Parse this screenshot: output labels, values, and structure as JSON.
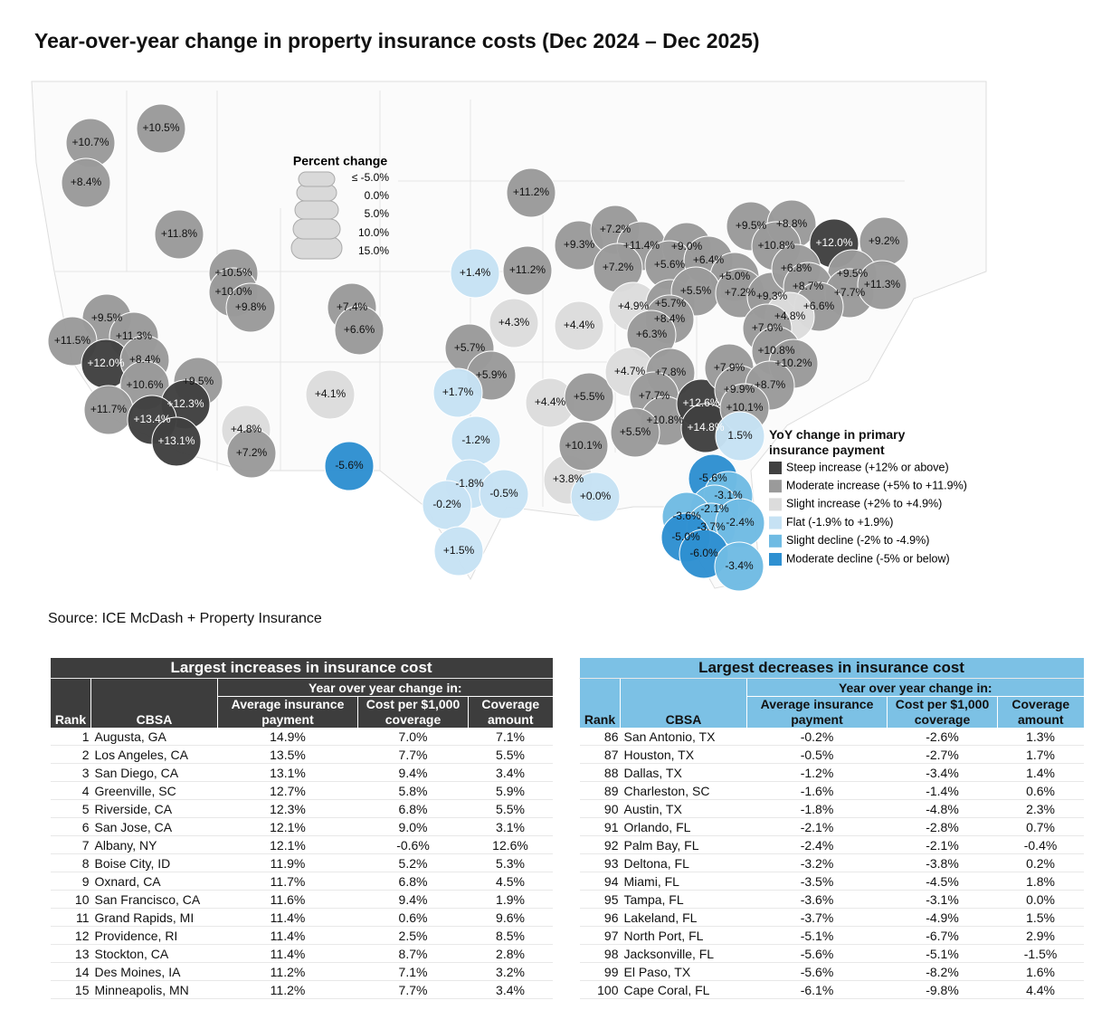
{
  "title": "Year-over-year change in property insurance costs (Dec 2024 – Dec 2025)",
  "map": {
    "size_legend": {
      "title": "Percent change",
      "labels": [
        "≤ -5.0%",
        "0.0%",
        "5.0%",
        "10.0%",
        "15.0%"
      ]
    },
    "legend": {
      "title": "YoY change in primary insurance payment",
      "items": [
        {
          "label": "Steep increase (+12% or above)",
          "color": "#404040"
        },
        {
          "label": "Moderate increase (+5% to +11.9%)",
          "color": "#9a9a9a"
        },
        {
          "label": "Slight increase (+2% to +4.9%)",
          "color": "#dcdcdc"
        },
        {
          "label": "Flat (-1.9% to +1.9%)",
          "color": "#c6e2f4"
        },
        {
          "label": "Slight decline (-2% to -4.9%)",
          "color": "#6fbbe3"
        },
        {
          "label": "Moderate decline (-5% or below)",
          "color": "#2e90d1"
        }
      ]
    },
    "bubbles": {
      "values": [
        10.7,
        10.5,
        8.4,
        11.8,
        10.5,
        10.0,
        9.8,
        9.5,
        11.3,
        11.5,
        12.0,
        8.4,
        10.6,
        9.5,
        12.3,
        11.7,
        13.4,
        13.1,
        4.8,
        7.2,
        7.4,
        6.6,
        4.1,
        -5.6,
        11.2,
        1.4,
        11.2,
        4.3,
        4.4,
        5.7,
        5.9,
        1.7,
        -1.2,
        4.4,
        5.5,
        -1.8,
        -0.2,
        -0.5,
        3.8,
        0.0,
        10.1,
        1.5,
        9.3,
        7.2,
        11.4,
        7.2,
        9.0,
        5.6,
        6.4,
        5.0,
        4.9,
        5.7,
        5.5,
        8.4,
        6.3,
        7.2,
        9.3,
        4.7,
        7.8,
        7.7,
        10.8,
        5.5,
        12.6,
        14.8,
        9.5,
        8.8,
        10.8,
        12.0,
        9.2,
        6.8,
        9.5,
        8.7,
        7.7,
        11.3,
        6.6,
        4.8,
        7.0,
        10.8,
        10.2,
        7.9,
        9.9,
        8.7,
        10.1,
        1.5,
        -5.6,
        -3.1,
        -2.1,
        -3.6,
        -3.7,
        -2.4,
        -5.0,
        -6.0,
        -3.4
      ],
      "value_labels": [
        "+10.7%",
        "+10.5%",
        "+8.4%",
        "+11.8%",
        "+10.5%",
        "+10.0%",
        "+9.8%",
        "+9.5%",
        "+11.3%",
        "+11.5%",
        "+12.0%",
        "+8.4%",
        "+10.6%",
        "+9.5%",
        "+12.3%",
        "+11.7%",
        "+13.4%",
        "+13.1%",
        "+4.8%",
        "+7.2%",
        "+7.4%",
        "+6.6%",
        "+4.1%",
        "-5.6%",
        "+11.2%",
        "+1.4%",
        "+11.2%",
        "+4.3%",
        "+4.4%",
        "+5.7%",
        "+5.9%",
        "+1.7%",
        "-1.2%",
        "+4.4%",
        "+5.5%",
        "-1.8%",
        "-0.2%",
        "-0.5%",
        "+3.8%",
        "+0.0%",
        "+10.1%",
        "+1.5%",
        "+9.3%",
        "+7.2%",
        "+11.4%",
        "+7.2%",
        "+9.0%",
        "+5.6%",
        "+6.4%",
        "+5.0%",
        "+4.9%",
        "+5.7%",
        "+5.5%",
        "+8.4%",
        "+6.3%",
        "+7.2%",
        "+9.3%",
        "+4.7%",
        "+7.8%",
        "+7.7%",
        "+10.8%",
        "+5.5%",
        "+12.6%",
        "+14.8%",
        "+9.5%",
        "+8.8%",
        "+10.8%",
        "+12.0%",
        "+9.2%",
        "+6.8%",
        "+9.5%",
        "+8.7%",
        "+7.7%",
        "+11.3%",
        "+6.6%",
        "+4.8%",
        "+7.0%",
        "+10.8%",
        "+10.2%",
        "+7.9%",
        "+9.9%",
        "+8.7%",
        "+10.1%",
        "1.5%",
        "-5.6%",
        "-3.1%",
        "-2.1%",
        "-3.6%",
        "-3.7%",
        "-2.4%",
        "-5.0%",
        "-6.0%",
        "-3.4%"
      ]
    }
  },
  "source": "Source: ICE McDash + Property Insurance",
  "tables": [
    {
      "title": "Largest increases in insurance cost",
      "group_header": "Year over year change in:",
      "columns": [
        "Rank",
        "CBSA",
        "Average insurance payment",
        "Cost per $1,000 coverage",
        "Coverage amount"
      ],
      "rows": [
        [
          1,
          "Augusta, GA",
          "14.9%",
          "7.0%",
          "7.1%"
        ],
        [
          2,
          "Los Angeles, CA",
          "13.5%",
          "7.7%",
          "5.5%"
        ],
        [
          3,
          "San Diego, CA",
          "13.1%",
          "9.4%",
          "3.4%"
        ],
        [
          4,
          "Greenville, SC",
          "12.7%",
          "5.8%",
          "5.9%"
        ],
        [
          5,
          "Riverside, CA",
          "12.3%",
          "6.8%",
          "5.5%"
        ],
        [
          6,
          "San Jose, CA",
          "12.1%",
          "9.0%",
          "3.1%"
        ],
        [
          7,
          "Albany, NY",
          "12.1%",
          "-0.6%",
          "12.6%"
        ],
        [
          8,
          "Boise City, ID",
          "11.9%",
          "5.2%",
          "5.3%"
        ],
        [
          9,
          "Oxnard, CA",
          "11.7%",
          "6.8%",
          "4.5%"
        ],
        [
          10,
          "San Francisco, CA",
          "11.6%",
          "9.4%",
          "1.9%"
        ],
        [
          11,
          "Grand Rapids, MI",
          "11.4%",
          "0.6%",
          "9.6%"
        ],
        [
          12,
          "Providence, RI",
          "11.4%",
          "2.5%",
          "8.5%"
        ],
        [
          13,
          "Stockton, CA",
          "11.4%",
          "8.7%",
          "2.8%"
        ],
        [
          14,
          "Des Moines, IA",
          "11.2%",
          "7.1%",
          "3.2%"
        ],
        [
          15,
          "Minneapolis, MN",
          "11.2%",
          "7.7%",
          "3.4%"
        ]
      ]
    },
    {
      "title": "Largest decreases in insurance cost",
      "group_header": "Year over year change in:",
      "columns": [
        "Rank",
        "CBSA",
        "Average insurance payment",
        "Cost per $1,000 coverage",
        "Coverage amount"
      ],
      "rows": [
        [
          86,
          "San Antonio, TX",
          "-0.2%",
          "-2.6%",
          "1.3%"
        ],
        [
          87,
          "Houston, TX",
          "-0.5%",
          "-2.7%",
          "1.7%"
        ],
        [
          88,
          "Dallas, TX",
          "-1.2%",
          "-3.4%",
          "1.4%"
        ],
        [
          89,
          "Charleston, SC",
          "-1.6%",
          "-1.4%",
          "0.6%"
        ],
        [
          90,
          "Austin, TX",
          "-1.8%",
          "-4.8%",
          "2.3%"
        ],
        [
          91,
          "Orlando, FL",
          "-2.1%",
          "-2.8%",
          "0.7%"
        ],
        [
          92,
          "Palm Bay, FL",
          "-2.4%",
          "-2.1%",
          "-0.4%"
        ],
        [
          93,
          "Deltona, FL",
          "-3.2%",
          "-3.8%",
          "0.2%"
        ],
        [
          94,
          "Miami, FL",
          "-3.5%",
          "-4.5%",
          "1.8%"
        ],
        [
          95,
          "Tampa, FL",
          "-3.6%",
          "-3.1%",
          "0.0%"
        ],
        [
          96,
          "Lakeland, FL",
          "-3.7%",
          "-4.9%",
          "1.5%"
        ],
        [
          97,
          "North Port, FL",
          "-5.1%",
          "-6.7%",
          "2.9%"
        ],
        [
          98,
          "Jacksonville, FL",
          "-5.6%",
          "-5.1%",
          "-1.5%"
        ],
        [
          99,
          "El Paso, TX",
          "-5.6%",
          "-8.2%",
          "1.6%"
        ],
        [
          100,
          "Cape Coral, FL",
          "-6.1%",
          "-9.8%",
          "4.4%"
        ]
      ]
    }
  ]
}
